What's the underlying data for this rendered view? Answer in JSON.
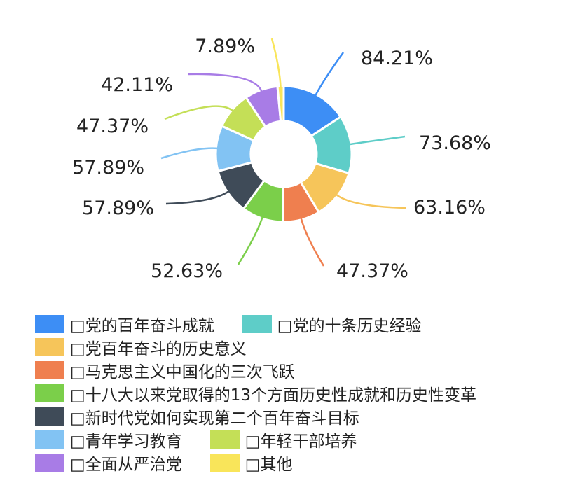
{
  "chart_data": {
    "type": "donut",
    "slices": [
      {
        "label": "□党的百年奋斗成就",
        "value": 84.21,
        "value_label": "84.21%",
        "color": "#3d8ef5"
      },
      {
        "label": "□党的十条历史经验",
        "value": 73.68,
        "value_label": "73.68%",
        "color": "#5ecdc8"
      },
      {
        "label": "□党百年奋斗的历史意义",
        "value": 63.16,
        "value_label": "63.16%",
        "color": "#f6c55a"
      },
      {
        "label": "□马克思主义中国化的三次飞跃",
        "value": 47.37,
        "value_label": "47.37%",
        "color": "#ef7f4f"
      },
      {
        "label": "□十八大以来党取得的13个方面历史性成就和历史性变革",
        "value": 52.63,
        "value_label": "52.63%",
        "color": "#7bcf4a"
      },
      {
        "label": "□新时代党如何实现第二个百年奋斗目标",
        "value": 57.89,
        "value_label": "57.89%",
        "color": "#3f4b58"
      },
      {
        "label": "□青年学习教育",
        "value": 57.89,
        "value_label": "57.89%",
        "color": "#82c3f3"
      },
      {
        "label": "□年轻干部培养",
        "value": 47.37,
        "value_label": "47.37%",
        "color": "#c4df57"
      },
      {
        "label": "□全面从严治党",
        "value": 42.11,
        "value_label": "42.11%",
        "color": "#a87ce6"
      },
      {
        "label": "□其他",
        "value": 7.89,
        "value_label": "7.89%",
        "color": "#f9e55a"
      }
    ],
    "legend_position": "bottom"
  },
  "legend_rows": [
    [
      0,
      1
    ],
    [
      2
    ],
    [
      3
    ],
    [
      4
    ],
    [
      5
    ],
    [
      6,
      7
    ],
    [
      8,
      9
    ]
  ]
}
